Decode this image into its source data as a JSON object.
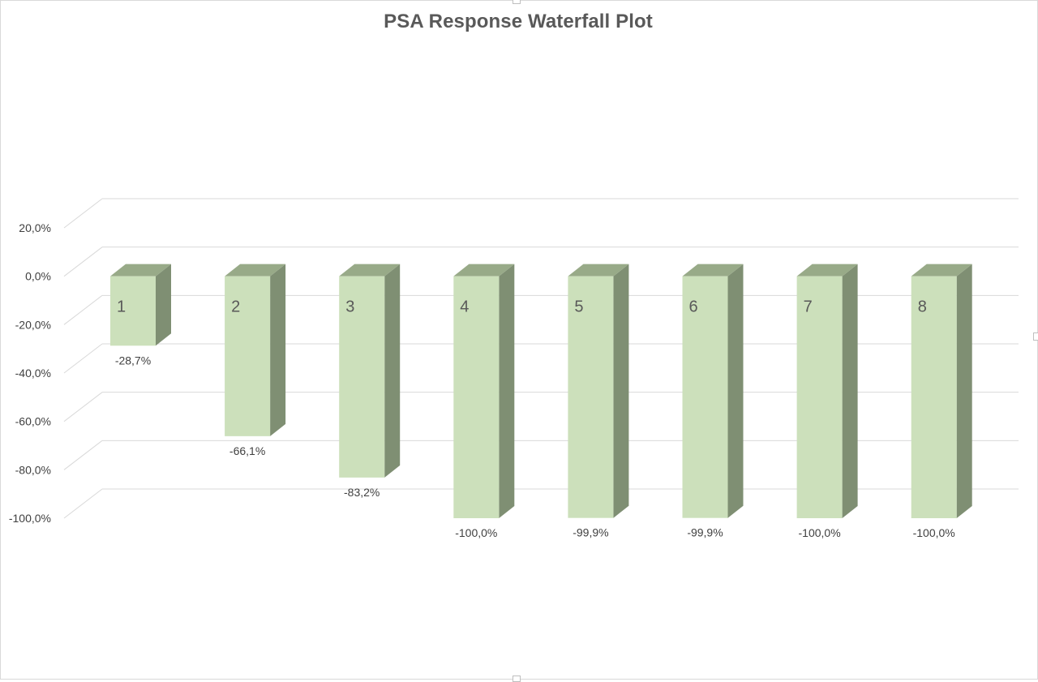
{
  "chart_data": {
    "type": "bar",
    "title": "PSA Response Waterfall Plot",
    "xlabel": "",
    "ylabel": "",
    "categories": [
      "1",
      "2",
      "3",
      "4",
      "5",
      "6",
      "7",
      "8"
    ],
    "values": [
      -28.7,
      -66.1,
      -83.2,
      -100.0,
      -99.9,
      -99.9,
      -100.0,
      -100.0
    ],
    "value_labels": [
      "-28,7%",
      "-66,1%",
      "-83,2%",
      "-100,0%",
      "-99,9%",
      "-99,9%",
      "-100,0%",
      "-100,0%"
    ],
    "ylim": [
      -100,
      20
    ],
    "yticks": [
      20,
      0,
      -20,
      -40,
      -60,
      -80,
      -100
    ],
    "ytick_labels": [
      "20,0%",
      "0,0%",
      "-20,0%",
      "-40,0%",
      "-60,0%",
      "-80,0%",
      "-100,0%"
    ],
    "grid": true,
    "style": "3d-column",
    "colors": {
      "front": "#cce0bb",
      "side": "#7f8f73",
      "top": "#98aa88",
      "grid": "#d9d9d9",
      "text": "#404040",
      "title": "#595959"
    }
  }
}
